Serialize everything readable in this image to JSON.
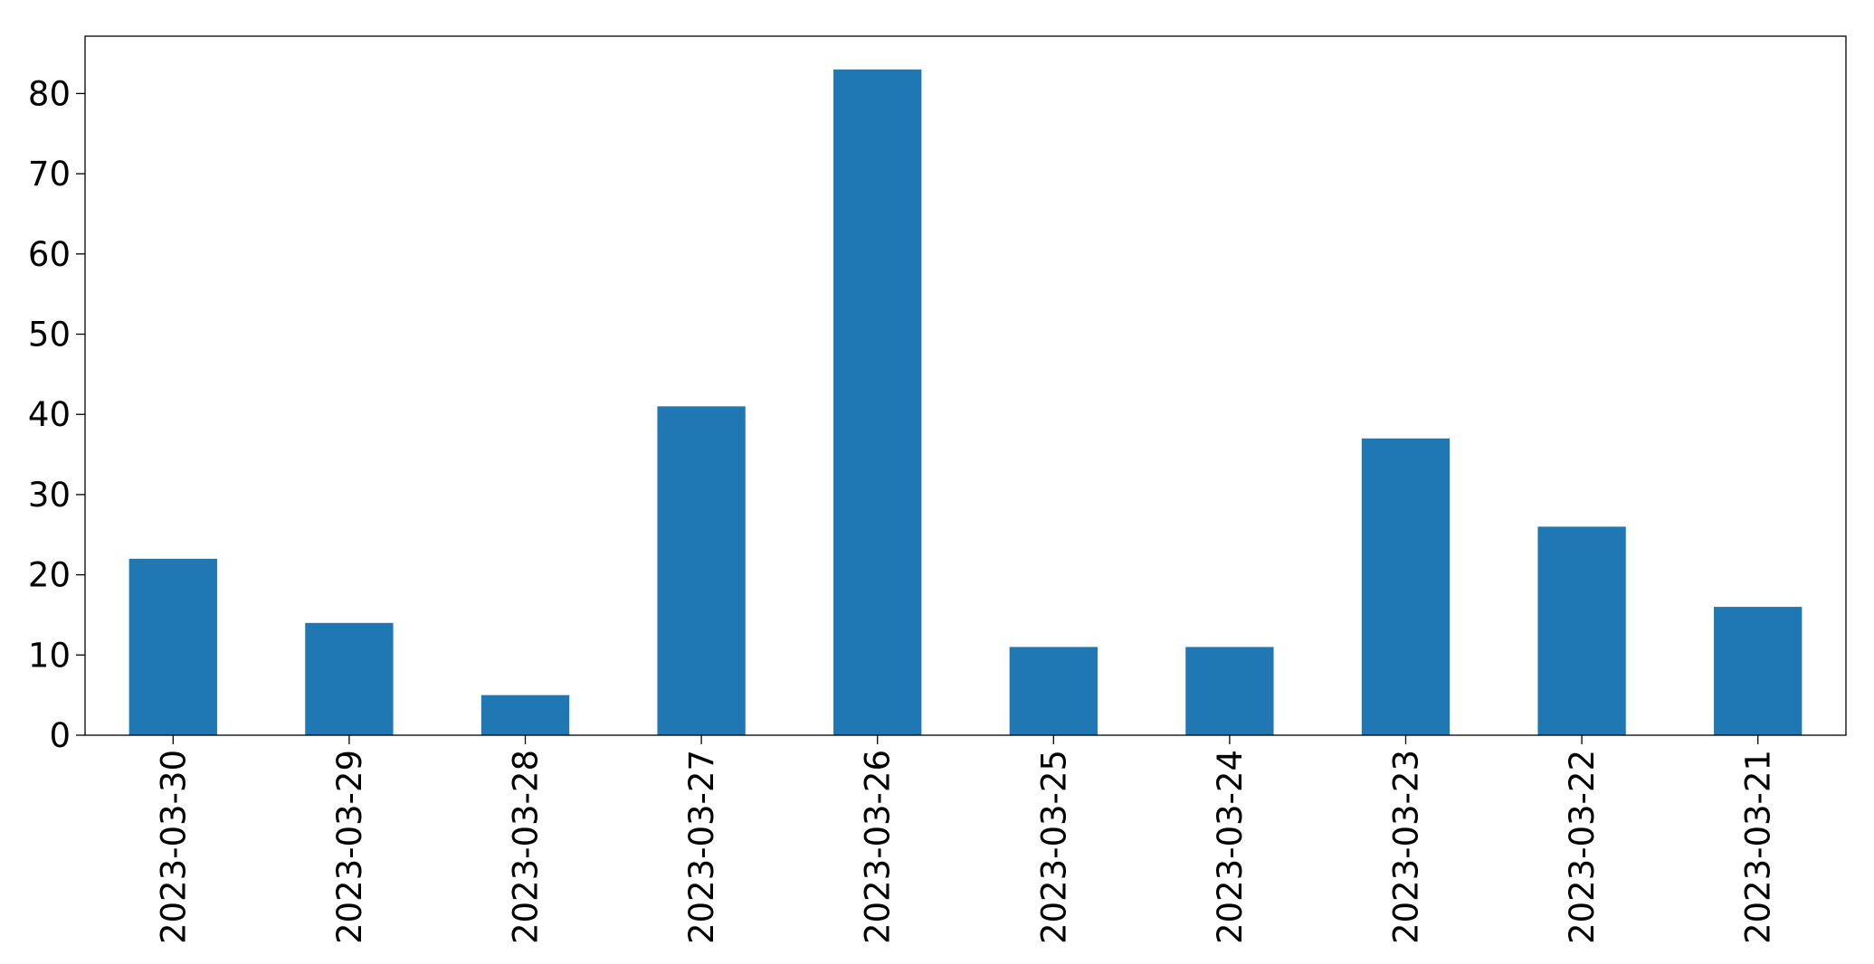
{
  "chart_data": {
    "type": "bar",
    "categories": [
      "2023-03-30",
      "2023-03-29",
      "2023-03-28",
      "2023-03-27",
      "2023-03-26",
      "2023-03-25",
      "2023-03-24",
      "2023-03-23",
      "2023-03-22",
      "2023-03-21"
    ],
    "values": [
      22,
      14,
      5,
      41,
      83,
      11,
      11,
      37,
      26,
      16
    ],
    "ylim": [
      0,
      87.15
    ],
    "yticks": [
      0,
      10,
      20,
      30,
      40,
      50,
      60,
      70,
      80
    ],
    "title": "",
    "xlabel": "",
    "ylabel": "",
    "grid": false,
    "legend": false,
    "colors": {
      "bar": "#1f77b4",
      "axes": "#000000",
      "background": "#ffffff"
    }
  }
}
